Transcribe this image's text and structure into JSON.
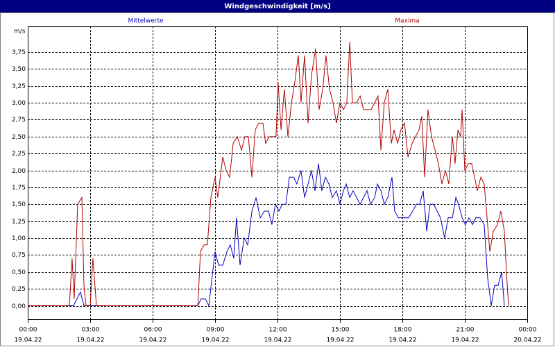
{
  "chart_data": {
    "type": "line",
    "title": "Windgeschwindigkeit [m/s]",
    "y_label": "m/s",
    "xlim": [
      0,
      24
    ],
    "ylim": [
      -0.2,
      4.13
    ],
    "grid": true,
    "xticks": [
      {
        "value": 0,
        "label": "00:00"
      },
      {
        "value": 3,
        "label": "03:00"
      },
      {
        "value": 6,
        "label": "06:00"
      },
      {
        "value": 9,
        "label": "09:00"
      },
      {
        "value": 12,
        "label": "12:00"
      },
      {
        "value": 15,
        "label": "15:00"
      },
      {
        "value": 18,
        "label": "18:00"
      },
      {
        "value": 21,
        "label": "21:00"
      },
      {
        "value": 24,
        "label": "00:00"
      }
    ],
    "xtick_dates": [
      "19.04.22",
      "19.04.22",
      "19.04.22",
      "19.04.22",
      "19.04.22",
      "19.04.22",
      "19.04.22",
      "19.04.22",
      "20.04.22"
    ],
    "yticks": [
      {
        "value": 0,
        "label": "0,00"
      },
      {
        "value": 0.25,
        "label": "0,25"
      },
      {
        "value": 0.5,
        "label": "0,50"
      },
      {
        "value": 0.75,
        "label": "0,75"
      },
      {
        "value": 1,
        "label": "1,00"
      },
      {
        "value": 1.25,
        "label": "1,25"
      },
      {
        "value": 1.5,
        "label": "1,50"
      },
      {
        "value": 1.75,
        "label": "1,75"
      },
      {
        "value": 2,
        "label": "2,00"
      },
      {
        "value": 2.25,
        "label": "2,25"
      },
      {
        "value": 2.5,
        "label": "2,50"
      },
      {
        "value": 2.75,
        "label": "2,75"
      },
      {
        "value": 3,
        "label": "3,00"
      },
      {
        "value": 3.25,
        "label": "3,25"
      },
      {
        "value": 3.5,
        "label": "3,50"
      },
      {
        "value": 3.75,
        "label": "3,75"
      }
    ],
    "series": [
      {
        "name": "Mittelwerte",
        "color": "#0000c0",
        "x": [
          0,
          2.2,
          2.53,
          2.7,
          8.17,
          8.33,
          8.53,
          8.7,
          9.0,
          9.17,
          9.37,
          9.57,
          9.73,
          9.9,
          10.03,
          10.2,
          10.4,
          10.57,
          10.77,
          10.97,
          11.17,
          11.37,
          11.57,
          11.73,
          11.9,
          12.07,
          12.23,
          12.4,
          12.57,
          12.77,
          12.93,
          13.13,
          13.3,
          13.47,
          13.63,
          13.8,
          13.97,
          14.13,
          14.3,
          14.47,
          14.63,
          14.83,
          15.0,
          15.17,
          15.3,
          15.47,
          15.63,
          15.8,
          15.97,
          16.13,
          16.3,
          16.47,
          16.67,
          16.8,
          16.97,
          17.13,
          17.3,
          17.5,
          17.63,
          17.8,
          18.0,
          18.3,
          18.5,
          18.67,
          18.83,
          19.0,
          19.17,
          19.33,
          19.5,
          19.67,
          19.83,
          20.03,
          20.2,
          20.4,
          20.57,
          20.7,
          20.87,
          21.03,
          21.2,
          21.37,
          21.53,
          21.73,
          21.93,
          22.1,
          22.27,
          22.43,
          22.6,
          22.77,
          22.9
        ],
        "values": [
          0,
          0,
          0.2,
          0,
          0,
          0.1,
          0.1,
          0,
          0.8,
          0.6,
          0.6,
          0.8,
          0.9,
          0.7,
          1.3,
          0.6,
          1.0,
          0.9,
          1.4,
          1.6,
          1.3,
          1.4,
          1.4,
          1.2,
          1.5,
          1.4,
          1.5,
          1.5,
          1.9,
          1.9,
          1.8,
          2.0,
          1.6,
          1.8,
          2.0,
          1.7,
          2.1,
          1.7,
          1.9,
          1.8,
          1.6,
          1.7,
          1.5,
          1.7,
          1.8,
          1.6,
          1.7,
          1.6,
          1.5,
          1.6,
          1.7,
          1.5,
          1.6,
          1.8,
          1.7,
          1.5,
          1.6,
          1.9,
          1.4,
          1.3,
          1.3,
          1.3,
          1.4,
          1.5,
          1.5,
          1.7,
          1.1,
          1.5,
          1.5,
          1.4,
          1.3,
          1.0,
          1.3,
          1.3,
          1.6,
          1.5,
          1.3,
          1.2,
          1.3,
          1.2,
          1.3,
          1.3,
          1.2,
          0.4,
          0,
          0.3,
          0.3,
          0.5,
          0
        ]
      },
      {
        "name": "Maxima",
        "color": "#b00000",
        "x": [
          0,
          2.0,
          2.13,
          2.23,
          2.4,
          2.6,
          2.7,
          2.8,
          3.0,
          3.13,
          3.3,
          8.17,
          8.3,
          8.47,
          8.63,
          8.8,
          9.0,
          9.13,
          9.37,
          9.53,
          9.7,
          9.87,
          10.07,
          10.27,
          10.43,
          10.6,
          10.77,
          10.93,
          11.1,
          11.3,
          11.43,
          11.6,
          11.77,
          11.93,
          12.03,
          12.17,
          12.33,
          12.5,
          12.67,
          12.83,
          13.0,
          13.13,
          13.3,
          13.47,
          13.63,
          13.83,
          14.0,
          14.17,
          14.33,
          14.5,
          14.67,
          14.83,
          15.0,
          15.17,
          15.33,
          15.47,
          15.6,
          15.8,
          15.97,
          16.13,
          16.3,
          16.5,
          16.67,
          16.83,
          16.97,
          17.13,
          17.3,
          17.47,
          17.6,
          17.77,
          17.93,
          18.1,
          18.27,
          18.47,
          18.63,
          18.8,
          18.93,
          19.07,
          19.23,
          19.4,
          19.57,
          19.73,
          19.9,
          20.07,
          20.23,
          20.4,
          20.53,
          20.67,
          20.8,
          20.87,
          21.0,
          21.17,
          21.33,
          21.47,
          21.6,
          21.77,
          21.93,
          22.07,
          22.2,
          22.37,
          22.57,
          22.73,
          22.9,
          23.0,
          23.1
        ],
        "values": [
          0,
          0,
          0.7,
          0.1,
          1.5,
          1.6,
          0.3,
          0,
          0,
          0.7,
          0,
          0,
          0.8,
          0.9,
          0.9,
          1.6,
          1.9,
          1.6,
          2.2,
          2.0,
          1.9,
          2.4,
          2.5,
          2.3,
          2.5,
          2.5,
          1.9,
          2.6,
          2.7,
          2.7,
          2.4,
          2.5,
          2.5,
          2.5,
          3.3,
          2.6,
          3.2,
          2.5,
          3.0,
          3.3,
          3.7,
          3.0,
          3.7,
          2.7,
          3.4,
          3.8,
          2.9,
          3.2,
          3.7,
          3.2,
          3.0,
          2.7,
          3.0,
          2.9,
          3.0,
          3.9,
          3.0,
          3.0,
          3.1,
          2.9,
          2.9,
          2.9,
          3.0,
          3.1,
          2.3,
          3.0,
          3.2,
          2.4,
          2.6,
          2.4,
          2.6,
          2.7,
          2.2,
          2.4,
          2.5,
          2.6,
          2.8,
          1.9,
          2.9,
          2.5,
          2.3,
          2.1,
          1.8,
          2.0,
          1.8,
          2.5,
          2.1,
          2.6,
          2.5,
          2.9,
          2.0,
          2.1,
          2.1,
          1.9,
          1.7,
          1.9,
          1.8,
          1.3,
          0.8,
          1.1,
          1.2,
          1.4,
          1.1,
          0.5,
          0
        ]
      }
    ]
  }
}
